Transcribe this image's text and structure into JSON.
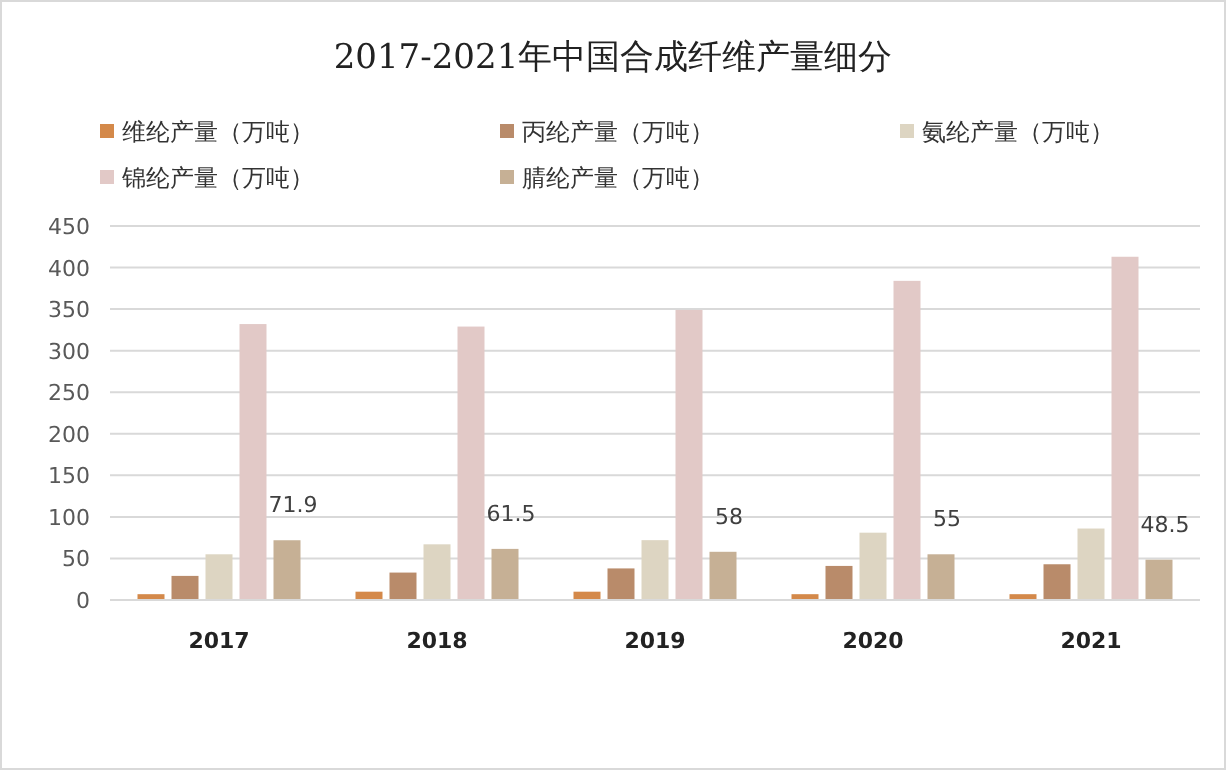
{
  "chart_data": {
    "type": "bar",
    "title": "2017-2021年中国合成纤维产量细分",
    "categories": [
      "2017",
      "2018",
      "2019",
      "2020",
      "2021"
    ],
    "series": [
      {
        "name": "维纶产量（万吨）",
        "color": "#d4894a",
        "values": [
          7,
          10,
          10,
          7,
          7
        ]
      },
      {
        "name": "丙纶产量（万吨）",
        "color": "#b98b6a",
        "values": [
          29,
          33,
          38,
          41,
          43
        ]
      },
      {
        "name": "氨纶产量（万吨）",
        "color": "#ddd5c2",
        "values": [
          55,
          67,
          72,
          81,
          86
        ]
      },
      {
        "name": "锦纶产量（万吨）",
        "color": "#e2c9c7",
        "values": [
          332,
          329,
          349,
          384,
          413
        ]
      },
      {
        "name": "腈纶产量（万吨）",
        "color": "#c6b095",
        "values": [
          71.9,
          61.5,
          58,
          55,
          48.5
        ],
        "value_labels": [
          "71.9",
          "61.5",
          "58",
          "55",
          "48.5"
        ]
      }
    ],
    "ylim": [
      0,
      450
    ],
    "yticks": [
      0,
      50,
      100,
      150,
      200,
      250,
      300,
      350,
      400,
      450
    ],
    "grid": "y",
    "legend": "top"
  }
}
